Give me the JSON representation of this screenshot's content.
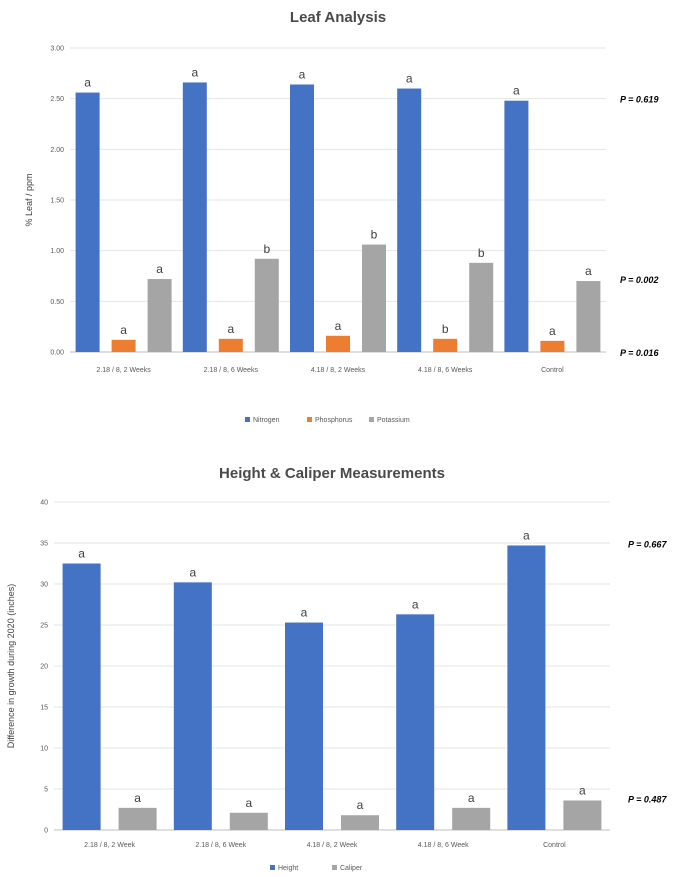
{
  "chart_data": [
    {
      "type": "bar",
      "title": "Leaf Analysis",
      "ylabel": "% Leaf / ppm",
      "ylim": [
        0,
        3
      ],
      "yticks": [
        "0.00",
        "0.50",
        "1.00",
        "1.50",
        "2.00",
        "2.50",
        "3.00"
      ],
      "categories": [
        "2.18 / 8, 2 Weeks",
        "2.18 / 8, 6 Weeks",
        "4.18 / 8, 2 Weeks",
        "4.18 / 8, 6 Weeks",
        "Control"
      ],
      "series": [
        {
          "name": "Nitrogen",
          "color": "#4472C4",
          "values": [
            2.56,
            2.66,
            2.64,
            2.6,
            2.48
          ],
          "labels": [
            "a",
            "a",
            "a",
            "a",
            "a"
          ]
        },
        {
          "name": "Phosphorus",
          "color": "#ED7D31",
          "values": [
            0.12,
            0.13,
            0.16,
            0.13,
            0.11
          ],
          "labels": [
            "a",
            "a",
            "a",
            "b",
            "a"
          ]
        },
        {
          "name": "Potassium",
          "color": "#A5A5A5",
          "values": [
            0.72,
            0.92,
            1.06,
            0.88,
            0.7
          ],
          "labels": [
            "a",
            "b",
            "b",
            "b",
            "a"
          ]
        }
      ],
      "legend_position": "bottom",
      "annotations": [
        {
          "text": "P = 0.619",
          "series": "Nitrogen"
        },
        {
          "text": "P = 0.002",
          "series": "Potassium"
        },
        {
          "text": "P = 0.016",
          "series": "Phosphorus"
        }
      ]
    },
    {
      "type": "bar",
      "title": "Height & Caliper Measurements",
      "ylabel": "Difference in growth during 2020 (inches)",
      "ylim": [
        0,
        40
      ],
      "yticks": [
        "0",
        "5",
        "10",
        "15",
        "20",
        "25",
        "30",
        "35",
        "40"
      ],
      "categories": [
        "2.18 / 8, 2 Week",
        "2.18 / 8, 6 Week",
        "4.18 / 8, 2 Week",
        "4.18 / 8, 6 Week",
        "Control"
      ],
      "series": [
        {
          "name": "Height",
          "color": "#4472C4",
          "values": [
            32.5,
            30.2,
            25.3,
            26.3,
            34.7
          ],
          "labels": [
            "a",
            "a",
            "a",
            "a",
            "a"
          ]
        },
        {
          "name": "Caliper",
          "color": "#A5A5A5",
          "values": [
            2.7,
            2.1,
            1.8,
            2.7,
            3.6
          ],
          "labels": [
            "a",
            "a",
            "a",
            "a",
            "a"
          ]
        }
      ],
      "legend_position": "bottom",
      "annotations": [
        {
          "text": "P = 0.667",
          "series": "Height"
        },
        {
          "text": "P = 0.487",
          "series": "Caliper"
        }
      ]
    }
  ]
}
